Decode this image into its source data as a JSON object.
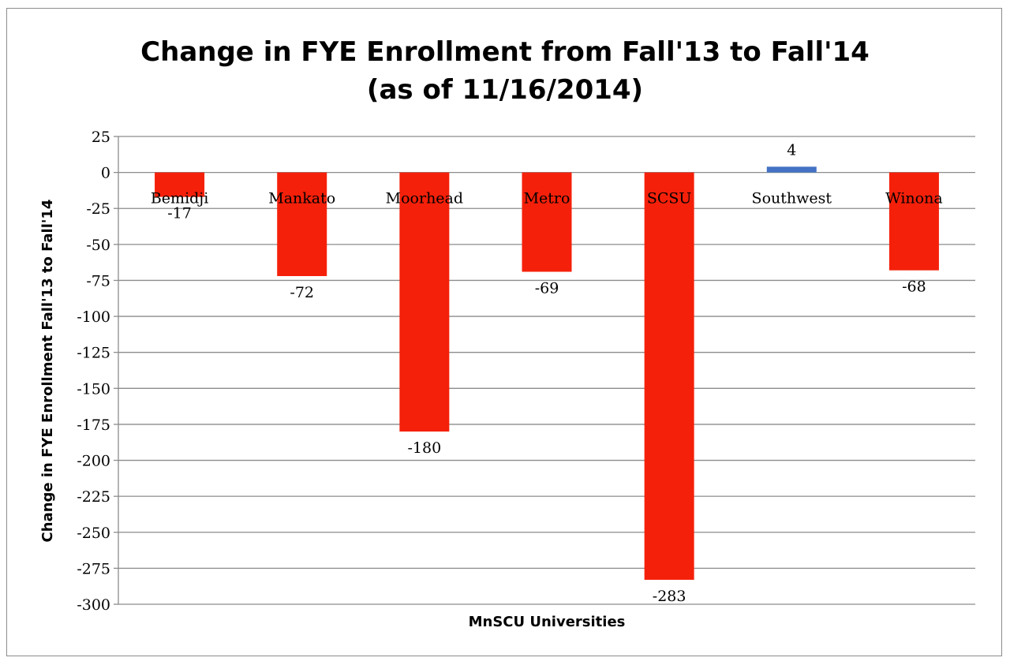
{
  "chart_data": {
    "type": "bar",
    "title": "Change in FYE Enrollment from Fall'13 to Fall'14",
    "subtitle": "(as of 11/16/2014)",
    "xlabel": "MnSCU Universities",
    "ylabel": "Change in FYE Enrollment Fall'13 to Fall'14",
    "categories": [
      "Bemidji",
      "Mankato",
      "Moorhead",
      "Metro",
      "SCSU",
      "Southwest",
      "Winona"
    ],
    "values": [
      -17,
      -72,
      -180,
      -69,
      -283,
      4,
      -68
    ],
    "data_labels": [
      "-17",
      "-72",
      "-180",
      "-69",
      "-283",
      "4",
      "-68"
    ],
    "ylim": [
      -300,
      25
    ],
    "yticks": [
      25,
      0,
      -25,
      -50,
      -75,
      -100,
      -125,
      -150,
      -175,
      -200,
      -225,
      -250,
      -275,
      -300
    ],
    "grid": true,
    "legend": "none",
    "colors": {
      "negative": "#f5200a",
      "positive": "#4472c4",
      "grid": "#8c8c8c"
    }
  }
}
